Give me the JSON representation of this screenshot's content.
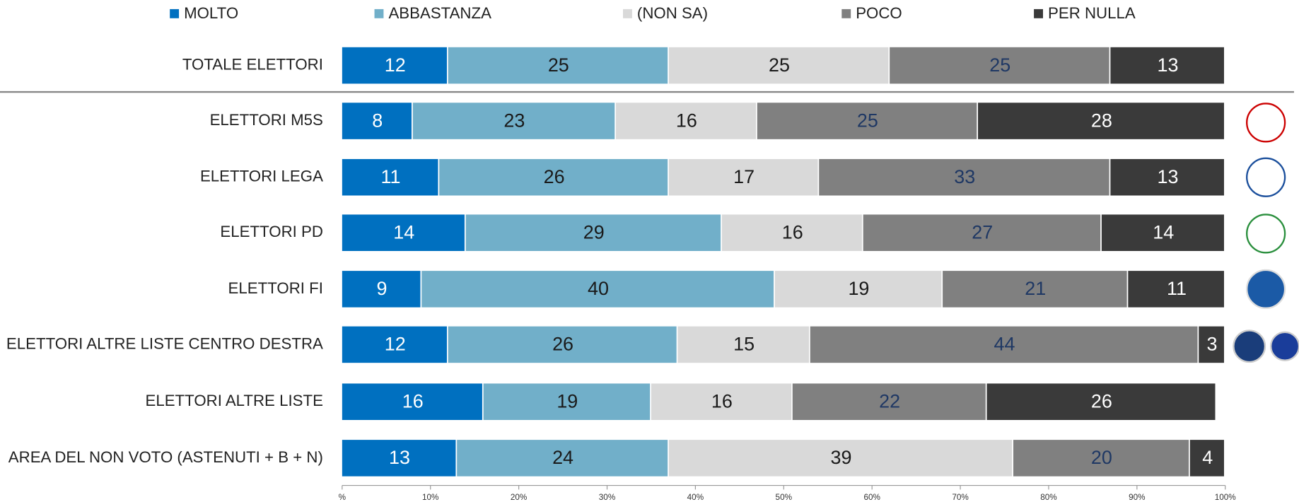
{
  "chart_data": {
    "type": "stacked_bar_horizontal",
    "categories": [
      "TOTALE ELETTORI",
      "ELETTORI M5S",
      "ELETTORI LEGA",
      "ELETTORI PD",
      "ELETTORI FI",
      "ELETTORI ALTRE LISTE CENTRO DESTRA",
      "ELETTORI ALTRE LISTE",
      "AREA DEL NON VOTO (ASTENUTI + B + N)"
    ],
    "series": [
      {
        "name": "MOLTO",
        "color": "#0070c0",
        "label_color": "#ffffff",
        "values": [
          12,
          8,
          11,
          14,
          9,
          12,
          16,
          13
        ]
      },
      {
        "name": "ABBASTANZA",
        "color": "#71afc9",
        "label_color": "#1a1a1a",
        "values": [
          25,
          23,
          26,
          29,
          40,
          26,
          19,
          24
        ]
      },
      {
        "name": "(NON SA)",
        "color": "#d9d9d9",
        "label_color": "#1a1a1a",
        "values": [
          25,
          16,
          17,
          16,
          19,
          15,
          16,
          39
        ]
      },
      {
        "name": "POCO",
        "color": "#808080",
        "label_color": "#1f3864",
        "values": [
          25,
          25,
          33,
          27,
          21,
          44,
          22,
          20
        ]
      },
      {
        "name": "PER NULLA",
        "color": "#3a3a3a",
        "label_color": "#ffffff",
        "values": [
          13,
          28,
          13,
          14,
          11,
          3,
          26,
          4
        ]
      }
    ],
    "xlim": [
      0,
      100
    ],
    "xticks": [
      {
        "value": 0,
        "label": "%"
      },
      {
        "value": 10,
        "label": "10%"
      },
      {
        "value": 20,
        "label": "20%"
      },
      {
        "value": 30,
        "label": "30%"
      },
      {
        "value": 40,
        "label": "40%"
      },
      {
        "value": 50,
        "label": "50%"
      },
      {
        "value": 60,
        "label": "60%"
      },
      {
        "value": 70,
        "label": "70%"
      },
      {
        "value": 80,
        "label": "80%"
      },
      {
        "value": 90,
        "label": "90%"
      },
      {
        "value": 100,
        "label": "100%"
      }
    ],
    "legend": "top"
  }
}
